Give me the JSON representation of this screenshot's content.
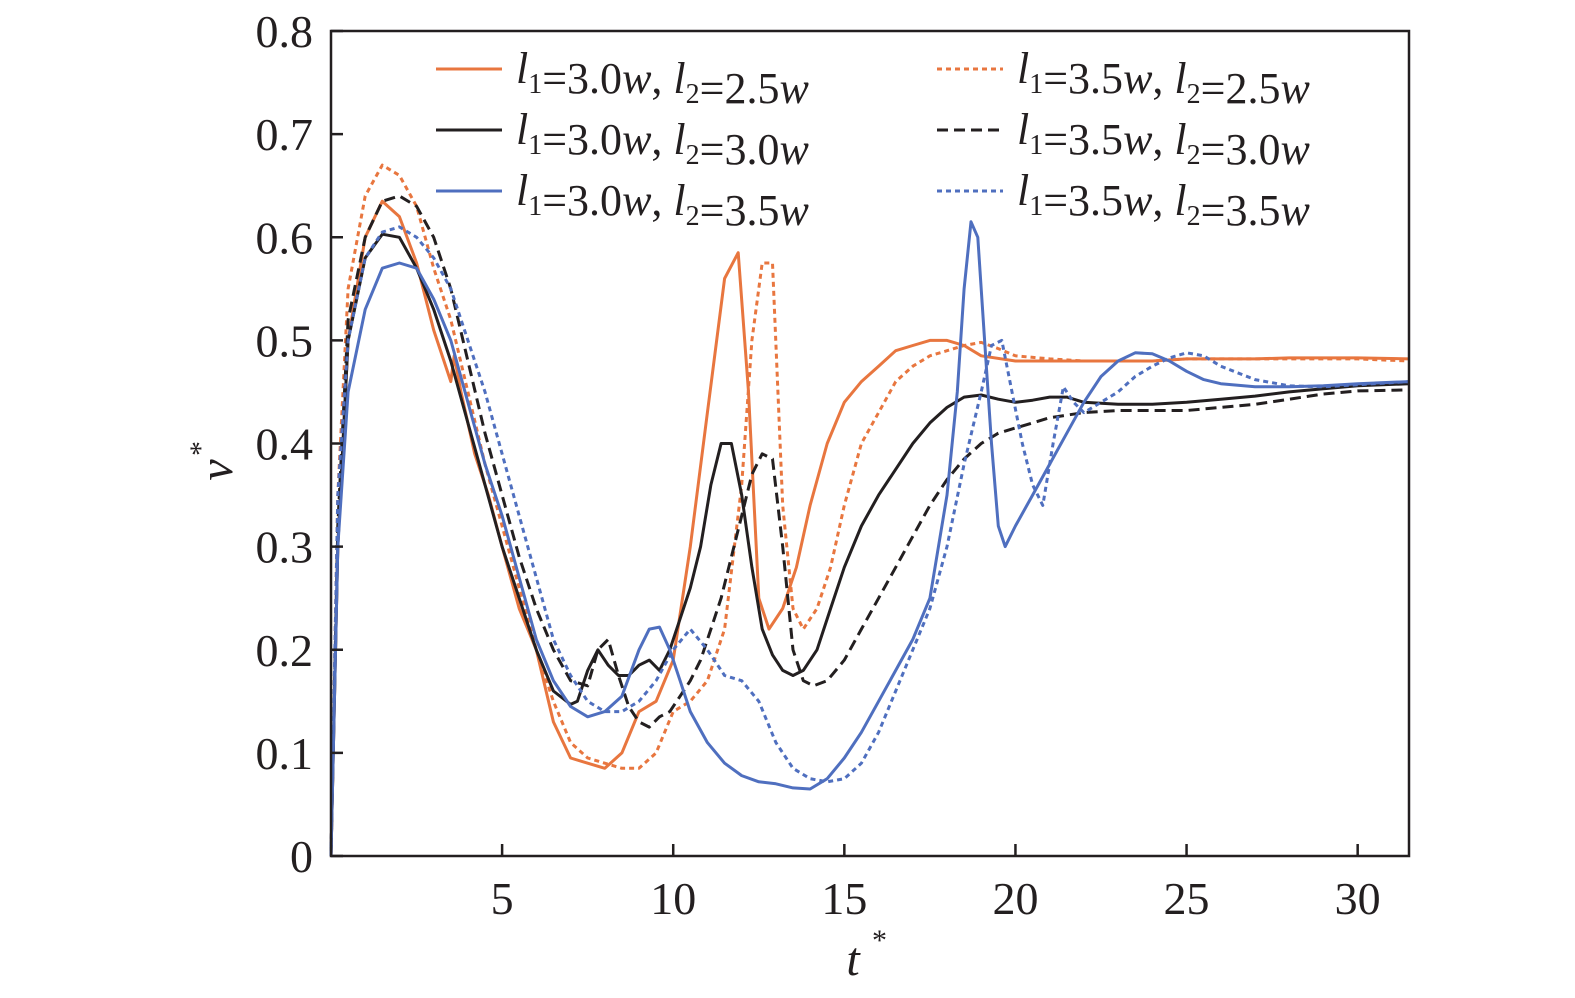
{
  "chart_data": {
    "type": "line",
    "xlabel": "t",
    "xlabel_sup": "*",
    "ylabel": "v",
    "ylabel_sup": "*",
    "xlim": [
      0,
      31.5
    ],
    "ylim": [
      0,
      0.8
    ],
    "xticks": [
      5,
      10,
      15,
      20,
      25,
      30
    ],
    "yticks": [
      0,
      0.1,
      0.2,
      0.3,
      0.4,
      0.5,
      0.6,
      0.7,
      0.8
    ],
    "ytick_labels": [
      "0",
      "0.1",
      "0.2",
      "0.3",
      "0.4",
      "0.5",
      "0.6",
      "0.7",
      "0.8"
    ],
    "grid": false,
    "legend_position": "top-right",
    "series": [
      {
        "name": "l1=3.0w, l2=2.5w",
        "l1": "3.0",
        "l2": "2.5",
        "color": "#e8763f",
        "dash": "solid",
        "x": [
          0,
          0.2,
          0.5,
          1,
          1.5,
          2,
          2.5,
          3,
          3.5,
          3.6,
          3.8,
          4.2,
          4.6,
          5,
          5.5,
          6,
          6.5,
          7,
          7.5,
          8,
          8.5,
          9,
          9.5,
          10,
          10.5,
          11,
          11.5,
          11.9,
          12.2,
          12.5,
          12.8,
          13.2,
          13.6,
          14,
          14.5,
          15,
          15.5,
          16,
          16.5,
          17,
          17.5,
          18,
          18.5,
          19,
          20,
          21,
          22,
          23,
          24,
          25,
          26,
          27,
          28,
          29,
          30,
          31.5
        ],
        "y": [
          0,
          0.3,
          0.5,
          0.6,
          0.635,
          0.62,
          0.575,
          0.51,
          0.46,
          0.485,
          0.45,
          0.39,
          0.35,
          0.3,
          0.24,
          0.2,
          0.13,
          0.095,
          0.09,
          0.085,
          0.1,
          0.14,
          0.15,
          0.19,
          0.3,
          0.43,
          0.56,
          0.585,
          0.45,
          0.25,
          0.22,
          0.24,
          0.28,
          0.34,
          0.4,
          0.44,
          0.46,
          0.475,
          0.49,
          0.495,
          0.5,
          0.5,
          0.495,
          0.485,
          0.48,
          0.48,
          0.48,
          0.48,
          0.48,
          0.482,
          0.482,
          0.482,
          0.483,
          0.483,
          0.483,
          0.482
        ]
      },
      {
        "name": "l1=3.5w, l2=2.5w",
        "l1": "3.5",
        "l2": "2.5",
        "color": "#e8763f",
        "dash": "dotted",
        "x": [
          0,
          0.2,
          0.5,
          1,
          1.5,
          2,
          2.5,
          3,
          3.5,
          4,
          4.5,
          5,
          5.5,
          6,
          6.5,
          7,
          7.5,
          8,
          8.5,
          9,
          9.5,
          10,
          10.5,
          11,
          11.5,
          12,
          12.3,
          12.6,
          12.9,
          13.2,
          13.5,
          13.8,
          14.2,
          14.6,
          15,
          15.5,
          16,
          16.5,
          17,
          17.5,
          18,
          18.5,
          19,
          19.5,
          20,
          21,
          22,
          23,
          24,
          25,
          26,
          27,
          28,
          29,
          30,
          31.5
        ],
        "y": [
          0,
          0.35,
          0.55,
          0.64,
          0.67,
          0.66,
          0.63,
          0.57,
          0.52,
          0.45,
          0.38,
          0.32,
          0.26,
          0.2,
          0.15,
          0.11,
          0.095,
          0.09,
          0.085,
          0.085,
          0.1,
          0.14,
          0.15,
          0.17,
          0.22,
          0.36,
          0.5,
          0.575,
          0.575,
          0.34,
          0.24,
          0.22,
          0.24,
          0.28,
          0.34,
          0.4,
          0.43,
          0.46,
          0.475,
          0.485,
          0.49,
          0.495,
          0.498,
          0.492,
          0.485,
          0.482,
          0.48,
          0.48,
          0.48,
          0.482,
          0.482,
          0.482,
          0.482,
          0.482,
          0.482,
          0.48
        ]
      },
      {
        "name": "l1=3.0w, l2=3.0w",
        "l1": "3.0",
        "l2": "3.0",
        "color": "#231f20",
        "dash": "solid",
        "x": [
          0,
          0.2,
          0.5,
          1,
          1.5,
          2,
          2.5,
          3,
          3.5,
          4,
          4.5,
          5,
          5.5,
          6,
          6.5,
          7,
          7.2,
          7.5,
          7.8,
          8.1,
          8.4,
          8.7,
          9,
          9.3,
          9.6,
          9.9,
          10.2,
          10.5,
          10.8,
          11.1,
          11.4,
          11.7,
          12,
          12.3,
          12.6,
          12.9,
          13.2,
          13.5,
          13.8,
          14.2,
          14.6,
          15,
          15.5,
          16,
          16.5,
          17,
          17.5,
          18,
          18.5,
          19,
          19.5,
          20,
          20.5,
          21,
          21.5,
          22,
          23,
          24,
          25,
          26,
          27,
          28,
          29,
          30,
          31.5
        ],
        "y": [
          0,
          0.3,
          0.5,
          0.58,
          0.603,
          0.6,
          0.57,
          0.53,
          0.48,
          0.42,
          0.36,
          0.3,
          0.25,
          0.2,
          0.16,
          0.147,
          0.15,
          0.18,
          0.2,
          0.185,
          0.175,
          0.175,
          0.185,
          0.19,
          0.18,
          0.2,
          0.23,
          0.26,
          0.3,
          0.36,
          0.4,
          0.4,
          0.35,
          0.28,
          0.22,
          0.195,
          0.18,
          0.175,
          0.18,
          0.2,
          0.24,
          0.28,
          0.32,
          0.35,
          0.375,
          0.4,
          0.42,
          0.435,
          0.445,
          0.447,
          0.443,
          0.44,
          0.442,
          0.445,
          0.445,
          0.44,
          0.438,
          0.438,
          0.44,
          0.443,
          0.446,
          0.45,
          0.453,
          0.456,
          0.458
        ]
      },
      {
        "name": "l1=3.5w, l2=3.0w",
        "l1": "3.5",
        "l2": "3.0",
        "color": "#231f20",
        "dash": "dashed",
        "x": [
          0,
          0.2,
          0.5,
          1,
          1.5,
          2,
          2.5,
          3,
          3.5,
          4,
          4.5,
          5,
          5.5,
          6,
          6.5,
          7,
          7.5,
          7.8,
          8.1,
          8.4,
          8.7,
          9,
          9.3,
          9.6,
          9.9,
          10.2,
          10.5,
          10.8,
          11.1,
          11.4,
          11.7,
          12,
          12.3,
          12.6,
          12.9,
          13.2,
          13.5,
          13.8,
          14.1,
          14.5,
          15,
          15.5,
          16,
          16.5,
          17,
          17.5,
          18,
          18.5,
          19,
          19.5,
          20,
          20.5,
          21,
          22,
          23,
          24,
          25,
          26,
          27,
          28,
          29,
          30,
          31.5
        ],
        "y": [
          0,
          0.32,
          0.52,
          0.6,
          0.635,
          0.64,
          0.63,
          0.6,
          0.55,
          0.48,
          0.41,
          0.35,
          0.29,
          0.24,
          0.2,
          0.17,
          0.165,
          0.2,
          0.21,
          0.175,
          0.145,
          0.13,
          0.125,
          0.135,
          0.14,
          0.155,
          0.17,
          0.19,
          0.22,
          0.25,
          0.29,
          0.33,
          0.37,
          0.39,
          0.385,
          0.3,
          0.2,
          0.17,
          0.165,
          0.17,
          0.19,
          0.22,
          0.25,
          0.28,
          0.31,
          0.34,
          0.365,
          0.385,
          0.4,
          0.41,
          0.415,
          0.42,
          0.425,
          0.43,
          0.432,
          0.432,
          0.432,
          0.435,
          0.438,
          0.443,
          0.448,
          0.451,
          0.452
        ]
      },
      {
        "name": "l1=3.0w, l2=3.5w",
        "l1": "3.0",
        "l2": "3.5",
        "color": "#4f6fbf",
        "dash": "solid",
        "x": [
          0,
          0.2,
          0.5,
          1,
          1.5,
          2,
          2.5,
          3,
          3.5,
          4,
          4.5,
          5,
          5.5,
          6,
          6.5,
          7,
          7.5,
          8,
          8.5,
          9,
          9.3,
          9.6,
          9.9,
          10.2,
          10.5,
          11,
          11.5,
          12,
          12.5,
          13,
          13.5,
          14,
          14.5,
          15,
          15.5,
          16,
          16.5,
          17,
          17.5,
          18,
          18.3,
          18.5,
          18.7,
          18.9,
          19.1,
          19.3,
          19.5,
          19.7,
          20,
          20.5,
          21,
          21.5,
          22,
          22.5,
          23,
          23.5,
          24,
          24.5,
          25,
          25.5,
          26,
          27,
          28,
          29,
          30,
          31.5
        ],
        "y": [
          0,
          0.3,
          0.45,
          0.53,
          0.57,
          0.575,
          0.57,
          0.54,
          0.5,
          0.44,
          0.38,
          0.33,
          0.27,
          0.21,
          0.17,
          0.145,
          0.135,
          0.14,
          0.155,
          0.2,
          0.22,
          0.222,
          0.2,
          0.17,
          0.14,
          0.11,
          0.09,
          0.078,
          0.072,
          0.07,
          0.066,
          0.065,
          0.075,
          0.095,
          0.12,
          0.15,
          0.18,
          0.21,
          0.25,
          0.35,
          0.45,
          0.55,
          0.615,
          0.6,
          0.5,
          0.4,
          0.32,
          0.3,
          0.32,
          0.35,
          0.38,
          0.41,
          0.44,
          0.465,
          0.48,
          0.488,
          0.487,
          0.48,
          0.47,
          0.462,
          0.458,
          0.455,
          0.455,
          0.456,
          0.458,
          0.46
        ]
      },
      {
        "name": "l1=3.5w, l2=3.5w",
        "l1": "3.5",
        "l2": "3.5",
        "color": "#4f6fbf",
        "dash": "dotted",
        "x": [
          0,
          0.2,
          0.5,
          1,
          1.5,
          2,
          2.5,
          3,
          3.5,
          4,
          4.5,
          5,
          5.5,
          6,
          6.5,
          7,
          7.5,
          8,
          8.5,
          9,
          9.5,
          10,
          10.5,
          11,
          11.5,
          12,
          12.5,
          13,
          13.5,
          14,
          14.5,
          15,
          15.5,
          16,
          16.5,
          17,
          17.5,
          18,
          18.5,
          19,
          19.3,
          19.6,
          19.9,
          20.2,
          20.5,
          20.8,
          21.1,
          21.4,
          21.7,
          22,
          22.5,
          23,
          23.5,
          24,
          24.5,
          25,
          25.5,
          26,
          27,
          28,
          29,
          30,
          31.5
        ],
        "y": [
          0,
          0.35,
          0.5,
          0.58,
          0.605,
          0.61,
          0.6,
          0.58,
          0.55,
          0.5,
          0.45,
          0.39,
          0.33,
          0.27,
          0.21,
          0.175,
          0.15,
          0.14,
          0.14,
          0.15,
          0.17,
          0.2,
          0.22,
          0.2,
          0.175,
          0.17,
          0.15,
          0.11,
          0.085,
          0.075,
          0.072,
          0.075,
          0.09,
          0.12,
          0.16,
          0.2,
          0.24,
          0.3,
          0.38,
          0.45,
          0.495,
          0.5,
          0.45,
          0.4,
          0.36,
          0.34,
          0.4,
          0.455,
          0.44,
          0.43,
          0.44,
          0.45,
          0.465,
          0.475,
          0.483,
          0.488,
          0.485,
          0.475,
          0.462,
          0.456,
          0.455,
          0.457,
          0.46
        ]
      }
    ]
  }
}
